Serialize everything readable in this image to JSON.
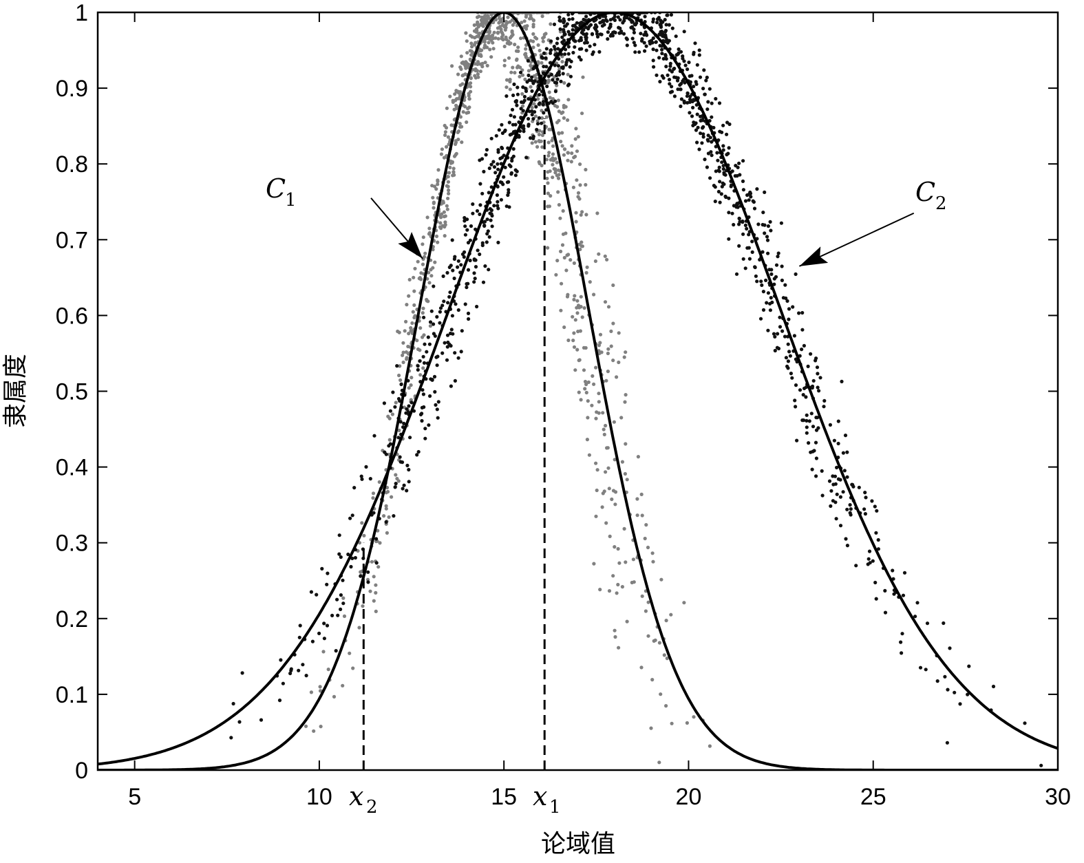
{
  "chart_data": {
    "type": "scatter",
    "title": "",
    "xlabel": "论域值",
    "ylabel": "隶属度",
    "xlim": [
      4,
      30
    ],
    "ylim": [
      0,
      1
    ],
    "xticks": [
      5,
      10,
      15,
      20,
      25,
      30
    ],
    "xtick_labels": [
      "5",
      "10",
      "15",
      "20",
      "25",
      "30"
    ],
    "yticks": [
      0,
      0.1,
      0.2,
      0.3,
      0.4,
      0.5,
      0.6,
      0.7,
      0.8,
      0.9,
      1
    ],
    "ytick_labels": [
      "0",
      "0.1",
      "0.2",
      "0.3",
      "0.4",
      "0.5",
      "0.6",
      "0.7",
      "0.8",
      "0.9",
      "1"
    ],
    "grid": false,
    "series": [
      {
        "name": "C1",
        "label_main": "C",
        "label_sub": "1",
        "kind": "gaussian-curve-with-scatter",
        "center": 15,
        "sigma": 2.3,
        "point_color": "#808080",
        "curve_color": "#000000",
        "approx_points": 1200
      },
      {
        "name": "C2",
        "label_main": "C",
        "label_sub": "2",
        "kind": "gaussian-curve-with-scatter",
        "center": 18,
        "sigma": 4.5,
        "point_color": "#111111",
        "curve_color": "#000000",
        "approx_points": 1400
      }
    ],
    "annotations": [
      {
        "id": "x1",
        "label_main": "x",
        "label_sub": "1",
        "x": 16.1,
        "y_top": 0.86,
        "style": "dashed"
      },
      {
        "id": "x2",
        "label_main": "x",
        "label_sub": "2",
        "x": 11.2,
        "y_top": 0.3,
        "style": "dashed"
      }
    ],
    "arrows": [
      {
        "label": "C1",
        "from": [
          11.4,
          0.755
        ],
        "to": [
          12.8,
          0.675
        ]
      },
      {
        "label": "C2",
        "from": [
          26.1,
          0.735
        ],
        "to": [
          23.0,
          0.665
        ]
      }
    ]
  }
}
